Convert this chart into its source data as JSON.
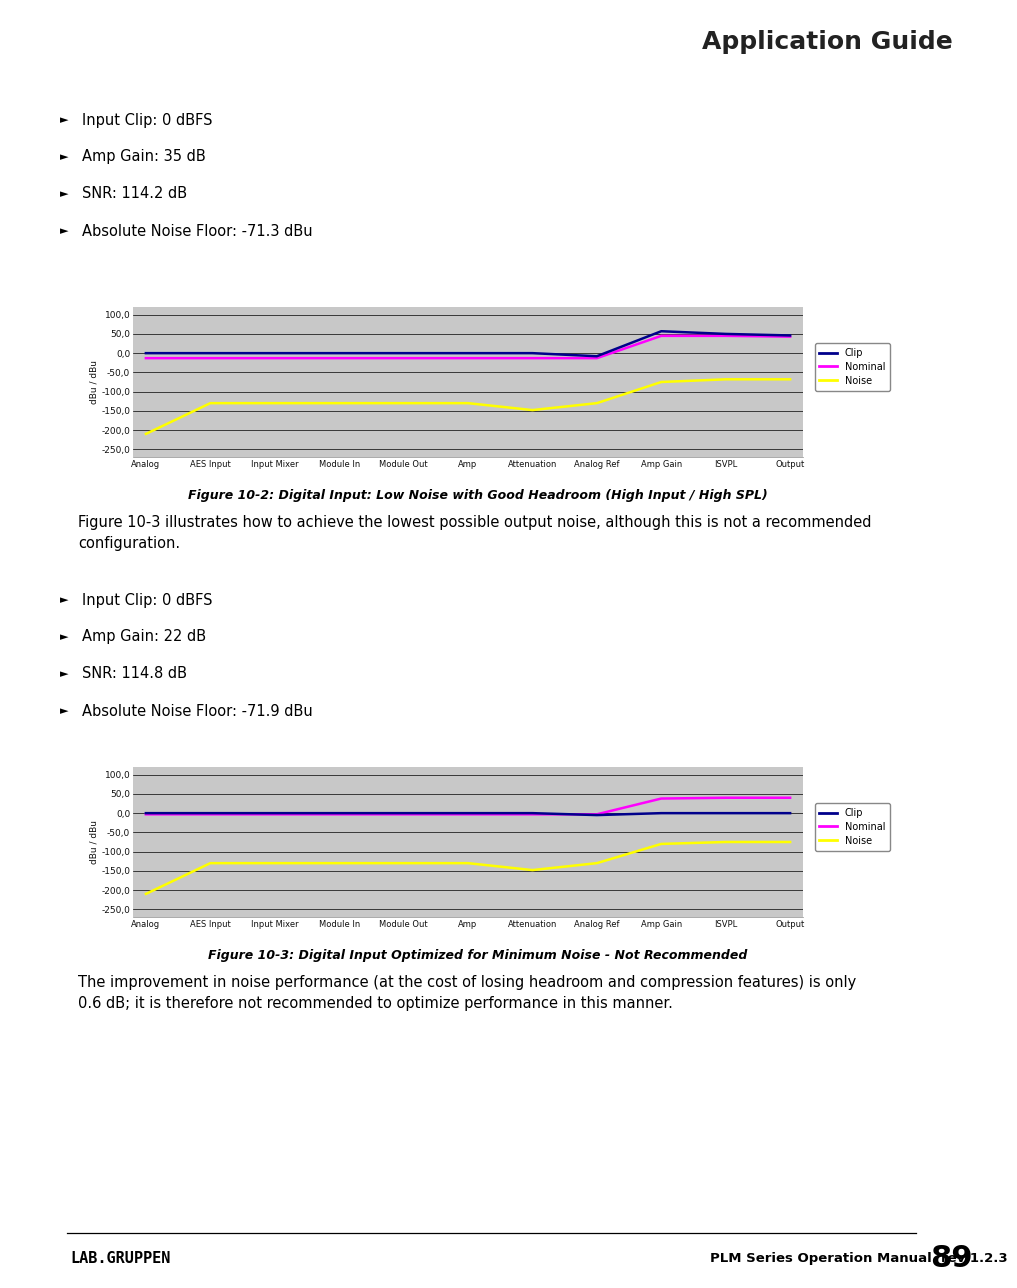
{
  "header_title": "Application Guide",
  "header_bg": "#eeeeee",
  "header_bar_left": "#a8bcc4",
  "header_bar_right": "#1e4f6e",
  "footer_text_left": "LAB.GRUPPEN",
  "footer_text_right": "PLM Series Operation Manual  rev 1.2.3",
  "footer_page": "89",
  "bullet_items_1": [
    "Input Clip: 0 dBFS",
    "Amp Gain: 35 dB",
    "SNR: 114.2 dB",
    "Absolute Noise Floor: -71.3 dBu"
  ],
  "bullet_items_2": [
    "Input Clip: 0 dBFS",
    "Amp Gain: 22 dB",
    "SNR: 114.8 dB",
    "Absolute Noise Floor: -71.9 dBu"
  ],
  "fig1_caption": "Figure 10-2: Digital Input: Low Noise with Good Headroom (High Input / High SPL)",
  "fig2_caption": "Figure 10-3: Digital Input Optimized for Minimum Noise - Not Recommended",
  "paragraph1": "Figure 10-3 illustrates how to achieve the lowest possible output noise, although this is not a recommended\nconfiguration.",
  "paragraph2": "The improvement in noise performance (at the cost of losing headroom and compression features) is only\n0.6 dB; it is therefore not recommended to optimize performance in this manner.",
  "x_labels": [
    "Analog",
    "AES Input",
    "Input Mixer",
    "Module In",
    "Module Out",
    "Amp",
    "Attenuation",
    "Analog Ref",
    "Amp Gain",
    "ISVPL",
    "Output"
  ],
  "y_ticks": [
    100.0,
    50.0,
    0.0,
    -50.0,
    -100.0,
    -150.0,
    -200.0,
    -250.0
  ],
  "y_min": -270,
  "y_max": 120,
  "chart_bg": "#c8c8c8",
  "chart_outer_bg": "#e0e0e0",
  "legend_labels": [
    "Clip",
    "Nominal",
    "Noise"
  ],
  "legend_colors": [
    "#00008b",
    "#ff00ff",
    "#ffff00"
  ],
  "chart1_clip": [
    0,
    0,
    0,
    0,
    0,
    0,
    0,
    -8,
    57,
    50,
    46
  ],
  "chart1_nominal": [
    -13,
    -13,
    -13,
    -13,
    -13,
    -13,
    -13,
    -13,
    45,
    45,
    43
  ],
  "chart1_noise": [
    -210,
    -130,
    -130,
    -130,
    -130,
    -130,
    -148,
    -130,
    -75,
    -68,
    -68
  ],
  "chart2_clip": [
    0,
    0,
    0,
    0,
    0,
    0,
    0,
    -5,
    0,
    0,
    0
  ],
  "chart2_nominal": [
    -3,
    -3,
    -3,
    -3,
    -3,
    -3,
    -3,
    -3,
    38,
    40,
    40
  ],
  "chart2_noise": [
    -210,
    -130,
    -130,
    -130,
    -130,
    -130,
    -148,
    -130,
    -80,
    -75,
    -75
  ]
}
